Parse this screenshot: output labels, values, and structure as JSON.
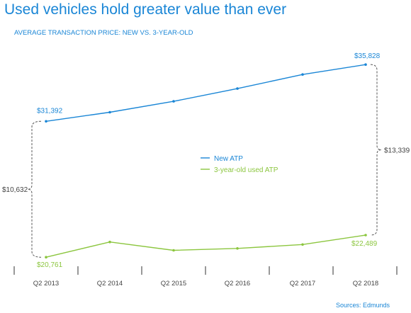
{
  "title": "Used vehicles hold greater value than ever",
  "subtitle": "AVERAGE TRANSACTION PRICE: NEW VS. 3-YEAR-OLD",
  "source": "Sources: Edmunds",
  "colors": {
    "title": "#1a86d6",
    "new": "#1a86d6",
    "used": "#8cc63f",
    "bracket": "#555555",
    "axis": "#333333"
  },
  "chart_data": {
    "type": "line",
    "title": "Used vehicles hold greater value than ever",
    "subtitle": "AVERAGE TRANSACTION PRICE: NEW VS. 3-YEAR-OLD",
    "categories": [
      "Q2 2013",
      "Q2 2014",
      "Q2 2015",
      "Q2 2016",
      "Q2 2017",
      "Q2 2018"
    ],
    "series": [
      {
        "name": "New ATP",
        "values": [
          31392,
          32100,
          32950,
          33950,
          35050,
          35828
        ]
      },
      {
        "name": "3-year-old used ATP",
        "values": [
          20761,
          21950,
          21300,
          21450,
          21750,
          22489
        ]
      }
    ],
    "ylim": [
      19000,
      37000
    ],
    "grid": false,
    "legend": "center",
    "annotations": {
      "first_new": "$31,392",
      "last_new": "$35,828",
      "first_used": "$20,761",
      "last_used": "$22,489",
      "gap_2013": "$10,632",
      "gap_2018": "$13,339"
    }
  }
}
